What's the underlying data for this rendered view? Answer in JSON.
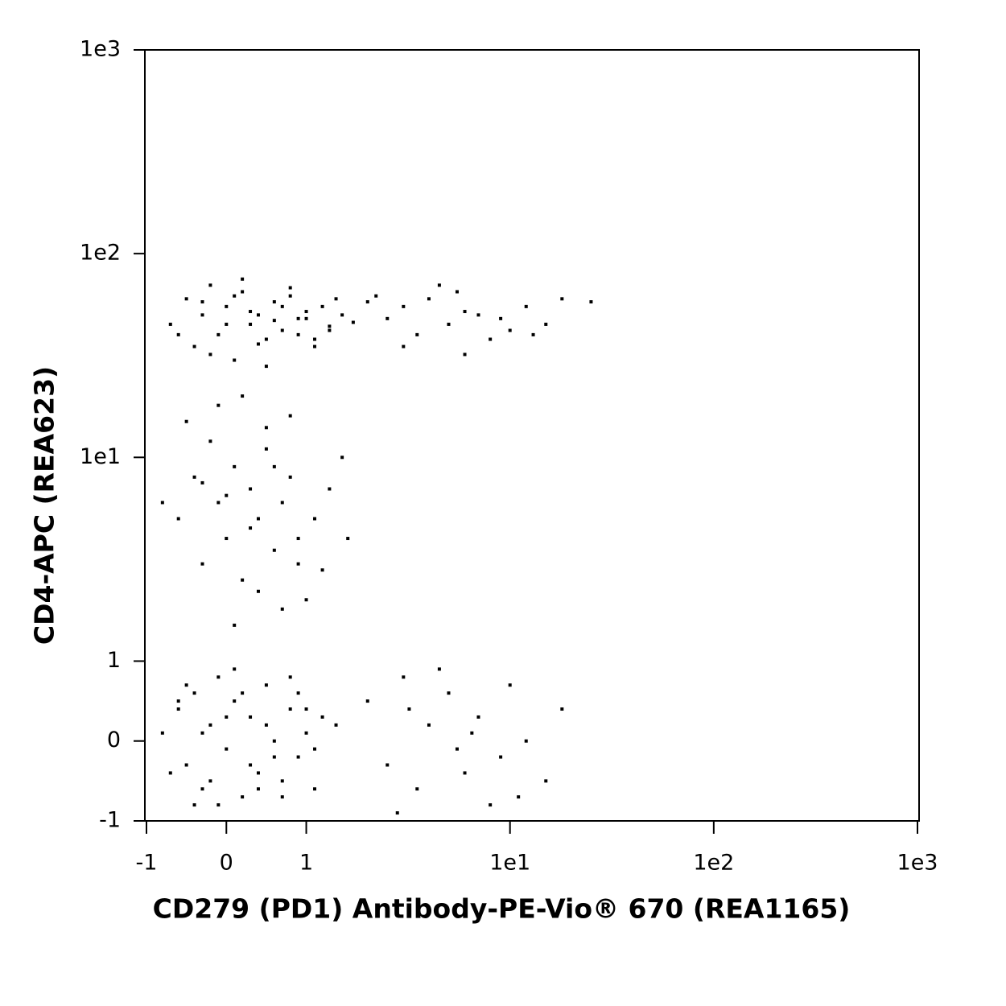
{
  "chart_data": {
    "type": "scatter",
    "x_label": "CD279 (PD1) Antibody-PE-Vio® 670 (REA1165)",
    "y_label": "CD4-APC (REA623)",
    "xscale": "hlog",
    "yscale": "hlog",
    "color": "#000000",
    "xlim": [
      -1,
      1000
    ],
    "ylim": [
      -1,
      1000
    ],
    "xticks": [
      -1,
      0,
      1,
      {
        "value": 10,
        "label": "1e1"
      },
      {
        "value": 100,
        "label": "1e2"
      },
      {
        "value": 1000,
        "label": "1e3"
      }
    ],
    "yticks": [
      -1,
      0,
      1,
      {
        "value": 10,
        "label": "1e1"
      },
      {
        "value": 100,
        "label": "1e2"
      },
      {
        "value": 1000,
        "label": "1e3"
      }
    ],
    "x": [
      -0.7,
      -0.5,
      -0.4,
      -0.3,
      -0.2,
      -0.1,
      0,
      0.1,
      0.2,
      0.3,
      0.4,
      0.5,
      0.6,
      0.7,
      0.8,
      0.9,
      1,
      1.1,
      1.2,
      1.3,
      1.5,
      1.7,
      2,
      -0.6,
      -0.2,
      0.2,
      0.5,
      0.8,
      1.1,
      1.4,
      0,
      0.3,
      0.6,
      0.9,
      -0.3,
      0.1,
      0.4,
      0.7,
      1,
      1.3,
      2.5,
      3,
      3.5,
      4,
      5,
      6,
      7,
      8,
      10,
      12,
      15,
      18,
      25,
      3,
      4.5,
      6,
      9,
      5.5,
      2.2,
      13,
      -0.6,
      -0.4,
      -0.3,
      -0.2,
      -0.1,
      0,
      0.1,
      0.2,
      0.3,
      0.4,
      0.5,
      0.6,
      0.7,
      0.8,
      0.9,
      1,
      1.1,
      1.3,
      1.6,
      -0.5,
      -0.1,
      0.2,
      0.5,
      0.8,
      1.2,
      0,
      0.3,
      0.6,
      0.9,
      -0.3,
      0.4,
      0.7,
      1.5,
      -0.8,
      0.1,
      -0.8,
      -0.6,
      -0.5,
      -0.4,
      -0.3,
      -0.2,
      -0.1,
      0,
      0.1,
      0.2,
      0.3,
      0.4,
      0.5,
      0.6,
      0.7,
      0.8,
      0.9,
      1,
      1.1,
      1.2,
      -0.7,
      -0.5,
      -0.3,
      -0.1,
      0.1,
      0.3,
      0.5,
      0.7,
      0.9,
      1.1,
      -0.6,
      -0.2,
      0.2,
      0.6,
      1,
      0,
      0.4,
      0.8,
      -0.4,
      1.4,
      2,
      2.5,
      3,
      3.5,
      4,
      5,
      6,
      7,
      8,
      10,
      12,
      15,
      18,
      2.8,
      4.5,
      6.5,
      9,
      11,
      3.2,
      5.5
    ],
    "values": [
      45,
      60,
      35,
      50,
      70,
      40,
      55,
      30,
      65,
      45,
      50,
      38,
      58,
      42,
      62,
      48,
      52,
      35,
      55,
      44,
      50,
      46,
      58,
      40,
      32,
      75,
      28,
      68,
      38,
      60,
      45,
      52,
      47,
      40,
      58,
      62,
      36,
      55,
      48,
      42,
      48,
      55,
      40,
      60,
      45,
      52,
      50,
      38,
      42,
      55,
      45,
      60,
      58,
      35,
      70,
      32,
      48,
      65,
      62,
      40,
      5,
      8,
      3,
      12,
      6,
      4,
      9,
      2.5,
      7,
      5,
      11,
      3.5,
      6,
      8,
      4,
      2,
      5,
      7,
      4,
      15,
      18,
      20,
      14,
      16,
      2.8,
      6.5,
      4.5,
      9,
      3,
      7.5,
      2.2,
      1.8,
      10,
      6,
      1.5,
      0.1,
      0.4,
      -0.3,
      0.6,
      -0.6,
      0.2,
      0.8,
      -0.1,
      0.5,
      -0.7,
      0.3,
      -0.4,
      0.7,
      0,
      -0.5,
      0.4,
      -0.2,
      0.1,
      -0.6,
      0.3,
      -0.4,
      0.7,
      0.1,
      -0.8,
      0.9,
      -0.3,
      0.2,
      -0.7,
      0.6,
      -0.1,
      0.5,
      -0.5,
      0.6,
      -0.2,
      0.4,
      0.3,
      -0.6,
      0.8,
      -0.8,
      0.2,
      0.5,
      -0.3,
      0.8,
      -0.6,
      0.2,
      0.6,
      -0.4,
      0.3,
      -0.8,
      0.7,
      0,
      -0.5,
      0.4,
      -0.9,
      0.9,
      0.1,
      -0.2,
      -0.7,
      0.4,
      -0.1
    ]
  }
}
